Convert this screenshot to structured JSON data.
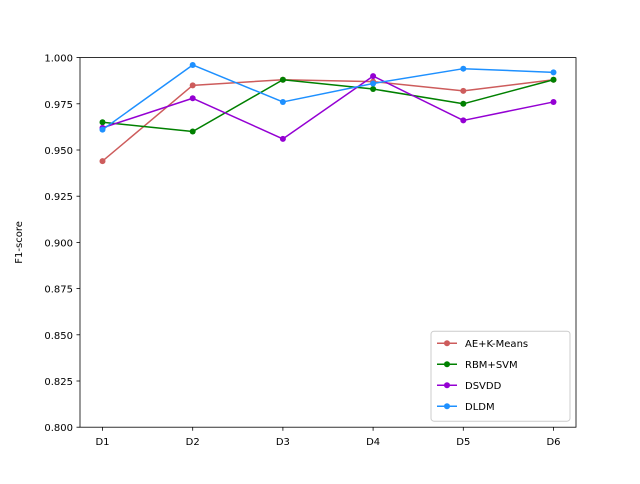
{
  "chart_data": {
    "type": "line",
    "title": "",
    "xlabel": "",
    "ylabel": "F1-score",
    "categories": [
      "D1",
      "D2",
      "D3",
      "D4",
      "D5",
      "D6"
    ],
    "ylim": [
      0.8,
      1.0
    ],
    "yticks": [
      "0.800",
      "0.825",
      "0.850",
      "0.875",
      "0.900",
      "0.925",
      "0.950",
      "0.975",
      "1.000"
    ],
    "grid": false,
    "legend_position": "bottom-right",
    "series": [
      {
        "name": "AE+K-Means",
        "color": "#cd5c5c",
        "values": [
          0.944,
          0.985,
          0.988,
          0.987,
          0.982,
          0.988
        ]
      },
      {
        "name": "RBM+SVM",
        "color": "#008000",
        "values": [
          0.965,
          0.96,
          0.988,
          0.983,
          0.975,
          0.988
        ]
      },
      {
        "name": "DSVDD",
        "color": "#9400d3",
        "values": [
          0.962,
          0.978,
          0.956,
          0.99,
          0.966,
          0.976
        ]
      },
      {
        "name": "DLDM",
        "color": "#1e90ff",
        "values": [
          0.961,
          0.996,
          0.976,
          0.986,
          0.994,
          0.992
        ]
      }
    ]
  }
}
